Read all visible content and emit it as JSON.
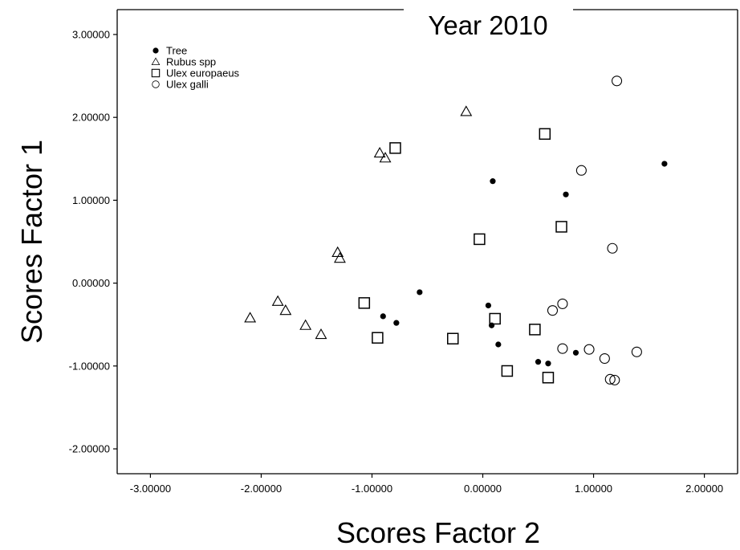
{
  "chart_data": {
    "type": "scatter",
    "title": "Year 2010",
    "xlabel": "Scores Factor 2",
    "ylabel": "Scores Factor 1",
    "xlim": [
      -3.3,
      2.3
    ],
    "ylim": [
      -2.3,
      3.3
    ],
    "xticks": [
      "-3.00000",
      "-2.00000",
      "-1.00000",
      "0.00000",
      "1.00000",
      "2.00000"
    ],
    "xtick_values": [
      -3,
      -2,
      -1,
      0,
      1,
      2
    ],
    "yticks": [
      "3.00000",
      "2.00000",
      "1.00000",
      "0.00000",
      "-1.00000",
      "-2.00000"
    ],
    "ytick_values": [
      3,
      2,
      1,
      0,
      -1,
      -2
    ],
    "grid": false,
    "legend_position": "top-left",
    "series": [
      {
        "name": "Tree",
        "marker": "filled-circle",
        "color": "#000000",
        "points": [
          [
            0.09,
            1.23
          ],
          [
            0.75,
            1.07
          ],
          [
            1.64,
            1.44
          ],
          [
            -0.57,
            -0.11
          ],
          [
            -0.9,
            -0.4
          ],
          [
            -0.78,
            -0.48
          ],
          [
            0.05,
            -0.27
          ],
          [
            0.08,
            -0.51
          ],
          [
            0.14,
            -0.74
          ],
          [
            0.5,
            -0.95
          ],
          [
            0.59,
            -0.97
          ],
          [
            0.84,
            -0.84
          ]
        ]
      },
      {
        "name": "Rubus spp",
        "marker": "triangle",
        "color": "#000000",
        "points": [
          [
            -0.15,
            2.07
          ],
          [
            -0.93,
            1.57
          ],
          [
            -0.88,
            1.51
          ],
          [
            -1.31,
            0.37
          ],
          [
            -1.29,
            0.3
          ],
          [
            -2.1,
            -0.42
          ],
          [
            -1.85,
            -0.22
          ],
          [
            -1.78,
            -0.33
          ],
          [
            -1.6,
            -0.51
          ],
          [
            -1.46,
            -0.62
          ]
        ]
      },
      {
        "name": "Ulex europaeus",
        "marker": "square",
        "color": "#000000",
        "points": [
          [
            0.56,
            1.8
          ],
          [
            -0.79,
            1.63
          ],
          [
            -0.03,
            0.53
          ],
          [
            0.71,
            0.68
          ],
          [
            -1.07,
            -0.24
          ],
          [
            -0.95,
            -0.66
          ],
          [
            -0.27,
            -0.67
          ],
          [
            0.11,
            -0.43
          ],
          [
            0.47,
            -0.56
          ],
          [
            0.22,
            -1.06
          ],
          [
            0.59,
            -1.14
          ]
        ]
      },
      {
        "name": "Ulex galli",
        "marker": "circle",
        "color": "#000000",
        "points": [
          [
            1.21,
            2.44
          ],
          [
            0.89,
            1.36
          ],
          [
            1.17,
            0.42
          ],
          [
            0.72,
            -0.25
          ],
          [
            0.63,
            -0.33
          ],
          [
            0.72,
            -0.79
          ],
          [
            0.96,
            -0.8
          ],
          [
            1.1,
            -0.91
          ],
          [
            1.39,
            -0.83
          ],
          [
            1.15,
            -1.16
          ],
          [
            1.19,
            -1.17
          ]
        ]
      }
    ]
  }
}
